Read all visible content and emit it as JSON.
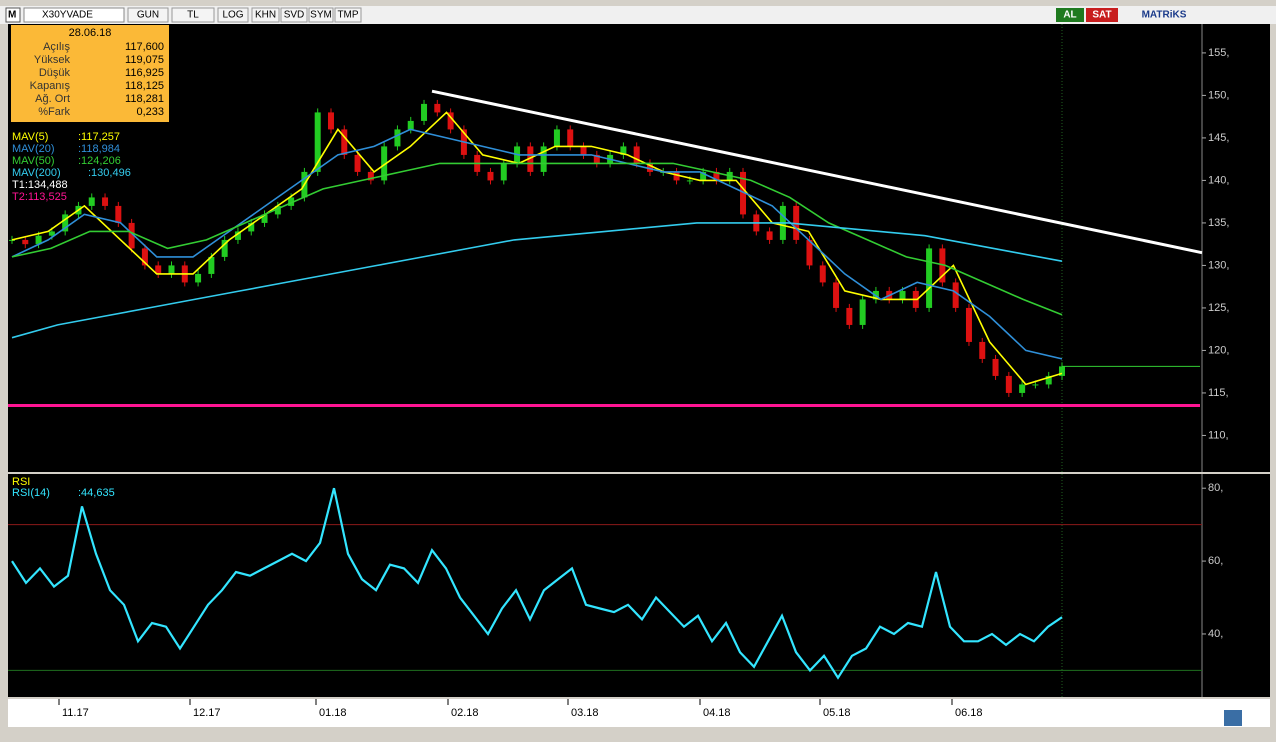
{
  "toolbar": {
    "logo": "M",
    "symbol": "X30YVADE",
    "buttons": [
      "GUN",
      "TL",
      "LOG",
      "KHN",
      "SVD",
      "SYM",
      "TMP"
    ],
    "buy": "AL",
    "sell": "SAT",
    "brand": "MATRiKS"
  },
  "info_box": {
    "date": "28.06.18",
    "rows": [
      [
        "Açılış",
        "117,600"
      ],
      [
        "Yüksek",
        "119,075"
      ],
      [
        "Düşük",
        "116,925"
      ],
      [
        "Kapanış",
        "118,125"
      ],
      [
        "Ağ. Ort",
        "118,281"
      ],
      [
        "%Fark",
        "0,233"
      ]
    ]
  },
  "price": {
    "ylim": [
      105.7,
      158.4
    ],
    "yticks": [
      {
        "value": 155,
        "label": "155,"
      },
      {
        "value": 150,
        "label": "150,"
      },
      {
        "value": 145,
        "label": "145,"
      },
      {
        "value": 140,
        "label": "140,"
      },
      {
        "value": 135,
        "label": "135,"
      },
      {
        "value": 130,
        "label": "130,"
      },
      {
        "value": 125,
        "label": "125,"
      },
      {
        "value": 120,
        "label": "120,"
      },
      {
        "value": 115,
        "label": "115,"
      },
      {
        "value": 110,
        "label": "110,"
      }
    ],
    "closes": [
      133,
      132.5,
      133.5,
      134,
      136,
      137,
      138,
      137,
      135,
      132,
      130,
      129,
      130,
      128,
      129,
      131,
      133,
      134,
      135,
      136,
      137,
      138,
      141,
      148,
      146,
      143,
      141,
      140,
      144,
      146,
      147,
      149,
      148,
      146,
      143,
      141,
      140,
      142,
      144,
      141,
      144,
      146,
      144,
      143,
      142,
      143,
      144,
      142,
      141,
      141,
      140,
      140,
      141,
      140,
      141,
      136,
      134,
      133,
      137,
      133,
      130,
      128,
      125,
      123,
      126,
      127,
      126,
      127,
      125,
      132,
      128,
      125,
      121,
      119,
      117,
      115,
      116,
      116,
      117,
      118.125
    ],
    "series": [
      {
        "name": "MAV(5)",
        "label": ":117,257",
        "color": "#ffff00",
        "values": [
          133,
          134,
          137,
          133,
          129,
          129,
          133,
          136,
          139,
          146,
          141,
          144,
          148,
          143,
          142,
          144,
          144,
          143,
          141,
          140,
          140,
          135,
          134,
          127,
          126,
          126,
          130,
          121,
          116,
          117.3
        ]
      },
      {
        "name": "MAV(20)",
        "label": ":118,984",
        "color": "#2f8fd8",
        "values": [
          131,
          133,
          136,
          135,
          131,
          131,
          134,
          137,
          140,
          143,
          144,
          146,
          145,
          144,
          143,
          143,
          143,
          142,
          141,
          141,
          139,
          137,
          133,
          129,
          126,
          128,
          127,
          124,
          120,
          119
        ]
      },
      {
        "name": "MAV(50)",
        "label": ":124,206",
        "color": "#33cc33",
        "values": [
          131,
          132,
          134,
          134,
          132,
          133,
          135,
          137,
          139,
          140,
          141,
          142,
          142,
          142,
          142,
          142,
          142,
          142,
          141,
          140,
          138,
          135,
          133,
          131,
          130,
          128,
          126,
          124.2
        ]
      },
      {
        "name": "MAV(200)",
        "label": ":130,496",
        "color": "#33ccee",
        "values": [
          121.5,
          123,
          124,
          125,
          126,
          127,
          128,
          129,
          130,
          131,
          132,
          133,
          133.5,
          134,
          134.5,
          135,
          135,
          135,
          134.5,
          134,
          133.5,
          132.5,
          131.5,
          130.5
        ]
      }
    ],
    "t1": "T1:134,488",
    "t2": {
      "label": "T2:113,525",
      "value": 113.525
    },
    "trendline": [
      150.5,
      131.5
    ]
  },
  "rsi": {
    "title": "RSI",
    "name": "RSI(14)",
    "label": ":44,635",
    "ylim": [
      22.7,
      83.9
    ],
    "yticks": [
      {
        "value": 80,
        "label": "80,"
      },
      {
        "value": 60,
        "label": "60,"
      },
      {
        "value": 40,
        "label": "40,"
      }
    ],
    "upper": 70,
    "lower": 30,
    "values": [
      60,
      54,
      58,
      53,
      56,
      75,
      62,
      52,
      48,
      38,
      43,
      42,
      36,
      42,
      48,
      52,
      57,
      56,
      58,
      60,
      62,
      60,
      65,
      80,
      62,
      55,
      52,
      59,
      58,
      54,
      63,
      58,
      50,
      45,
      40,
      47,
      52,
      44,
      52,
      55,
      58,
      48,
      47,
      46,
      48,
      44,
      50,
      46,
      42,
      45,
      38,
      43,
      35,
      31,
      38,
      45,
      35,
      30,
      34,
      28,
      34,
      36,
      42,
      40,
      43,
      42,
      57,
      42,
      38,
      38,
      40,
      37,
      40,
      38,
      42,
      44.6
    ]
  },
  "x_labels": [
    "11.17",
    "12.17",
    "01.18",
    "02.18",
    "03.18",
    "04.18",
    "05.18",
    "06.18"
  ]
}
